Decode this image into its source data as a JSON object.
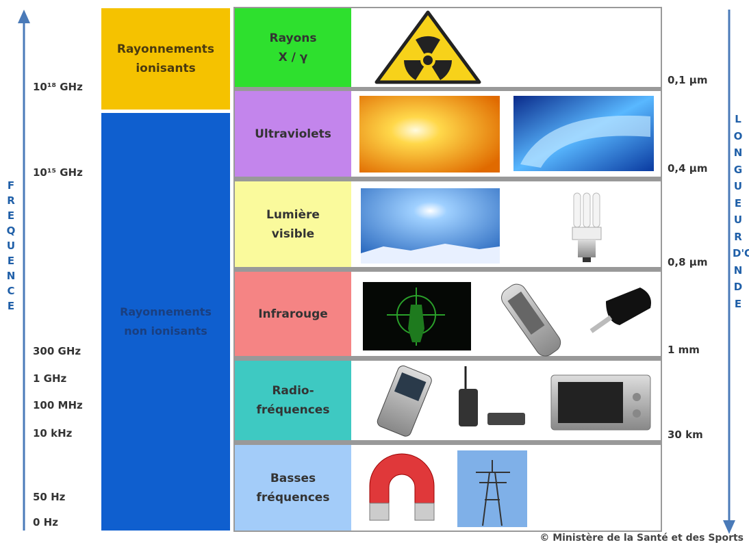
{
  "axes": {
    "frequency": {
      "label": "FREQUENCE",
      "ticks": [
        "10¹⁸ GHz",
        "10¹⁵ GHz",
        "300 GHz",
        "1 GHz",
        "100 MHz",
        "10 kHz",
        "50 Hz",
        "0 Hz"
      ]
    },
    "wavelength": {
      "label": "LONGUEUR D'ONDE",
      "ticks": [
        "0,1 µm",
        "0,4 µm",
        "0,8 µm",
        "1 mm",
        "30 km"
      ]
    }
  },
  "groups": [
    "Rayonnements ionisants",
    "Rayonnements non ionisants"
  ],
  "bands": [
    "Rayons X / γ",
    "Ultraviolets",
    "Lumière visible",
    "Infrarouge",
    "Radio-fréquences",
    "Basses fréquences"
  ],
  "credit": "© Ministère de la Santé et des Sports"
}
